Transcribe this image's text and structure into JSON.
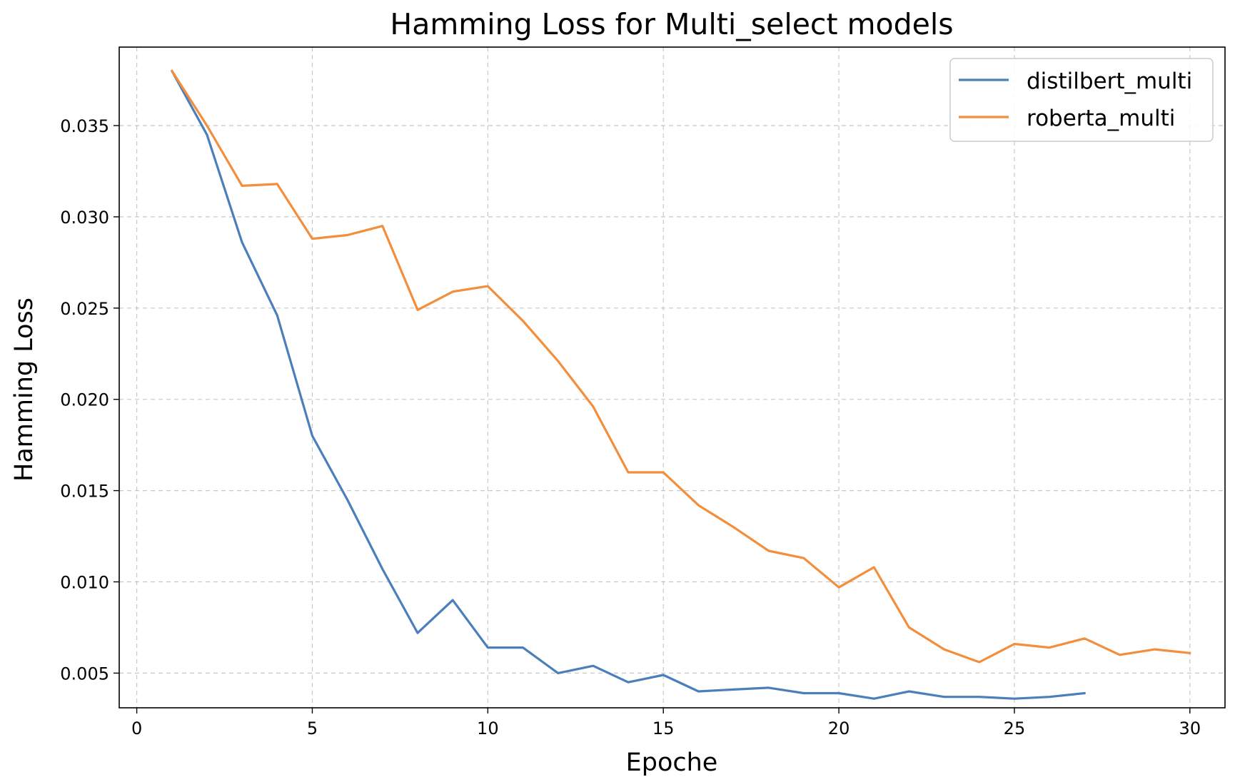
{
  "chart_data": {
    "type": "line",
    "title": "Hamming Loss for Multi_select models",
    "xlabel": "Epoche",
    "ylabel": "Hamming Loss",
    "xlim": [
      -0.5,
      31.0
    ],
    "ylim": [
      0.0031,
      0.0393
    ],
    "xticks": [
      0,
      5,
      10,
      15,
      20,
      25,
      30
    ],
    "yticks": [
      0.005,
      0.01,
      0.015,
      0.02,
      0.025,
      0.03,
      0.035
    ],
    "ytick_labels": [
      "0.005",
      "0.010",
      "0.015",
      "0.020",
      "0.025",
      "0.030",
      "0.035"
    ],
    "grid": true,
    "legend_position": "top-right",
    "series": [
      {
        "name": "distilbert_multi",
        "color": "#4a7fbb",
        "x": [
          1,
          2,
          3,
          4,
          5,
          6,
          7,
          8,
          9,
          10,
          11,
          12,
          13,
          14,
          15,
          16,
          17,
          18,
          19,
          20,
          21,
          22,
          23,
          24,
          25,
          26,
          27
        ],
        "values": [
          0.038,
          0.0345,
          0.0286,
          0.0246,
          0.018,
          0.0145,
          0.0107,
          0.0072,
          0.009,
          0.0064,
          0.0064,
          0.005,
          0.0054,
          0.0045,
          0.0049,
          0.004,
          0.0041,
          0.0042,
          0.0039,
          0.0039,
          0.0036,
          0.004,
          0.0037,
          0.0037,
          0.0036,
          0.0037,
          0.0039
        ]
      },
      {
        "name": "roberta_multi",
        "color": "#f28e3c",
        "x": [
          1,
          2,
          3,
          4,
          5,
          6,
          7,
          8,
          9,
          10,
          11,
          12,
          13,
          14,
          15,
          16,
          17,
          18,
          19,
          20,
          21,
          22,
          23,
          24,
          25,
          26,
          27,
          28,
          29,
          30
        ],
        "values": [
          0.038,
          0.035,
          0.0317,
          0.0318,
          0.0288,
          0.029,
          0.0295,
          0.0249,
          0.0259,
          0.0262,
          0.0243,
          0.0221,
          0.0196,
          0.016,
          0.016,
          0.0142,
          0.013,
          0.0117,
          0.0113,
          0.0097,
          0.0108,
          0.0075,
          0.0063,
          0.0056,
          0.0066,
          0.0064,
          0.0069,
          0.006,
          0.0063,
          0.0061
        ]
      }
    ]
  }
}
